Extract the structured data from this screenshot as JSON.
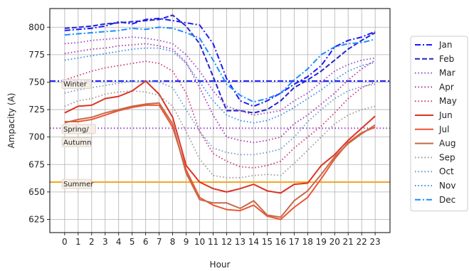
{
  "chart_data": {
    "type": "line",
    "xlabel": "Hour",
    "ylabel": "Ampacity (A)",
    "x": [
      0,
      1,
      2,
      3,
      4,
      5,
      6,
      7,
      8,
      9,
      10,
      11,
      12,
      13,
      14,
      15,
      16,
      17,
      18,
      19,
      20,
      21,
      22,
      23
    ],
    "xlim": [
      -1.1,
      24.1
    ],
    "ylim": [
      613,
      817
    ],
    "yticks": [
      625,
      650,
      675,
      700,
      725,
      750,
      775,
      800
    ],
    "grid": true,
    "legend_position": "right",
    "series": [
      {
        "name": "Jan",
        "color": "#1a1aff",
        "dash": "dashdot",
        "values": [
          797,
          798,
          799,
          801,
          805,
          803,
          807,
          808,
          806,
          804,
          802,
          785,
          753,
          733,
          728,
          733,
          740,
          748,
          755,
          765,
          782,
          788,
          791,
          796
        ]
      },
      {
        "name": "Feb",
        "color": "#2424cc",
        "dash": "dashed",
        "values": [
          799,
          800,
          801,
          803,
          804,
          805,
          806,
          807,
          811,
          801,
          785,
          755,
          724,
          724,
          722,
          725,
          733,
          745,
          752,
          760,
          770,
          780,
          788,
          795
        ]
      },
      {
        "name": "Mar",
        "color": "#9944cc",
        "dash": "dotted",
        "values": [
          785,
          786,
          788,
          789,
          790,
          791,
          790,
          788,
          785,
          775,
          760,
          742,
          728,
          724,
          720,
          722,
          724,
          733,
          740,
          750,
          760,
          766,
          770,
          772
        ]
      },
      {
        "name": "Apr",
        "color": "#aa33aa",
        "dash": "dotted",
        "values": [
          776,
          778,
          780,
          781,
          783,
          784,
          785,
          783,
          780,
          768,
          745,
          720,
          700,
          697,
          695,
          697,
          700,
          712,
          720,
          730,
          740,
          752,
          762,
          770
        ]
      },
      {
        "name": "May",
        "color": "#cc3377",
        "dash": "dotted",
        "values": [
          752,
          756,
          760,
          763,
          765,
          767,
          769,
          767,
          760,
          740,
          705,
          685,
          678,
          673,
          672,
          674,
          678,
          690,
          700,
          710,
          722,
          735,
          745,
          750
        ]
      },
      {
        "name": "Jun",
        "color": "#dd3322",
        "dash": "solid",
        "values": [
          722,
          728,
          729,
          735,
          737,
          742,
          751,
          739,
          718,
          674,
          659,
          653,
          650,
          653,
          657,
          651,
          649,
          657,
          658,
          674,
          684,
          697,
          708,
          719
        ]
      },
      {
        "name": "Jul",
        "color": "#ee5533",
        "dash": "solid",
        "values": [
          714,
          714,
          716,
          720,
          724,
          727,
          729,
          729,
          709,
          670,
          645,
          638,
          634,
          633,
          638,
          628,
          625,
          636,
          645,
          662,
          680,
          695,
          704,
          709
        ]
      },
      {
        "name": "Aug",
        "color": "#c46a4a",
        "dash": "solid",
        "values": [
          713,
          716,
          718,
          722,
          725,
          728,
          730,
          731,
          712,
          667,
          643,
          640,
          640,
          635,
          642,
          629,
          627,
          642,
          651,
          666,
          682,
          694,
          703,
          711
        ]
      },
      {
        "name": "Sep",
        "color": "#999999",
        "dash": "dotted",
        "values": [
          728,
          733,
          735,
          739,
          741,
          742,
          741,
          738,
          728,
          705,
          680,
          665,
          663,
          663,
          665,
          666,
          665,
          676,
          688,
          700,
          712,
          720,
          725,
          728
        ]
      },
      {
        "name": "Oct",
        "color": "#6699cc",
        "dash": "dotted",
        "values": [
          740,
          743,
          745,
          747,
          749,
          751,
          751,
          750,
          745,
          725,
          705,
          690,
          686,
          684,
          684,
          686,
          689,
          700,
          714,
          725,
          735,
          742,
          746,
          748
        ]
      },
      {
        "name": "Nov",
        "color": "#3388ee",
        "dash": "dotted",
        "values": [
          770,
          772,
          774,
          776,
          778,
          780,
          781,
          781,
          778,
          767,
          750,
          733,
          720,
          715,
          713,
          715,
          720,
          727,
          735,
          743,
          752,
          760,
          765,
          768
        ]
      },
      {
        "name": "Dec",
        "color": "#1e8cff",
        "dash": "dashdot",
        "values": [
          793,
          794,
          795,
          796,
          797,
          799,
          798,
          800,
          799,
          795,
          790,
          770,
          748,
          738,
          732,
          735,
          740,
          752,
          762,
          775,
          782,
          785,
          786,
          789
        ]
      }
    ],
    "hlines": [
      {
        "value": 751,
        "color": "#1a1aff",
        "dash": "dashdot"
      },
      {
        "value": 708,
        "color": "#9944cc",
        "dash": "dotted"
      },
      {
        "value": 659,
        "color": "#f5a623",
        "dash": "solid"
      }
    ],
    "annotations": [
      {
        "text": "Winter",
        "x": -0.1,
        "y": 746
      },
      {
        "text": "Spring/",
        "x": -0.1,
        "y": 705
      },
      {
        "text": "Autumn",
        "x": -0.1,
        "y": 693
      },
      {
        "text": "Summer",
        "x": -0.1,
        "y": 655
      }
    ]
  }
}
